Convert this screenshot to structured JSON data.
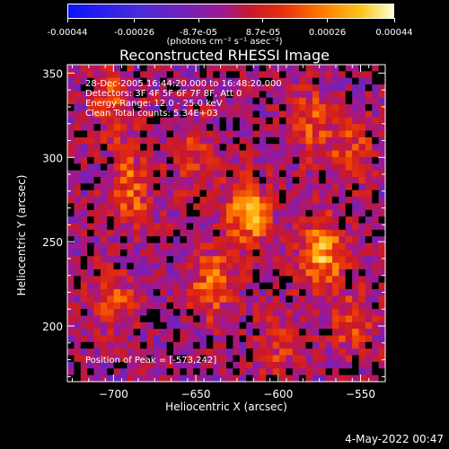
{
  "colorbar": {
    "tick_labels": [
      "-0.00044",
      "-0.00026",
      "-8.7e-05",
      "8.7e-05",
      "0.00026",
      "0.00044"
    ],
    "tick_values": [
      -0.00044,
      -0.00026,
      -8.7e-05,
      8.7e-05,
      0.00026,
      0.00044
    ],
    "unit_label": "(photons cm⁻² s⁻¹ asec⁻²)",
    "range": [
      -0.00044,
      0.00044
    ]
  },
  "title": "Reconstructed RHESSI Image",
  "annotations": {
    "time_range": "28-Dec-2005 16:44:20.000 to 16:48:20.000",
    "detectors": "Detectors: 3F 4F 5F 6F 7F 8F, Att 0",
    "energy": "Energy Range: 12.0 - 25.0 keV",
    "method": "Clean     Total counts: 5.34E+03",
    "peak": "Position of Peak = [-573,242]"
  },
  "timestamp": "4-May-2022 00:47",
  "chart_data": {
    "type": "heatmap",
    "title": "Reconstructed RHESSI Image",
    "xlabel": "Heliocentric X (arcsec)",
    "ylabel": "Heliocentric Y (arcsec)",
    "xlim": [
      -728,
      -535
    ],
    "ylim": [
      167,
      355
    ],
    "x_ticks": [
      -700,
      -650,
      -600,
      -550
    ],
    "x_tick_labels": [
      "−700",
      "−650",
      "−600",
      "−550"
    ],
    "y_ticks": [
      200,
      250,
      300,
      350
    ],
    "y_tick_labels": [
      "200",
      "250",
      "300",
      "350"
    ],
    "colorscale": [
      "#0a14ff",
      "#4b2bd8",
      "#7a1fb4",
      "#a01890",
      "#c8182a",
      "#e6300c",
      "#ff7a00",
      "#ffc31a",
      "#ffffd0"
    ],
    "peak": [
      -573,
      242
    ],
    "bright_regions": [
      {
        "x": -618,
        "y": 265,
        "intensity": 0.0004
      },
      {
        "x": -573,
        "y": 242,
        "intensity": 0.00044
      },
      {
        "x": -640,
        "y": 225,
        "intensity": 0.0003
      },
      {
        "x": -690,
        "y": 280,
        "intensity": 0.0003
      },
      {
        "x": -700,
        "y": 330,
        "intensity": 0.00025
      },
      {
        "x": -580,
        "y": 320,
        "intensity": 0.00025
      },
      {
        "x": -700,
        "y": 215,
        "intensity": 0.00022
      },
      {
        "x": -555,
        "y": 305,
        "intensity": 0.00022
      },
      {
        "x": -650,
        "y": 300,
        "intensity": 0.0002
      },
      {
        "x": -600,
        "y": 190,
        "intensity": 0.00018
      },
      {
        "x": -555,
        "y": 200,
        "intensity": 0.0002
      }
    ]
  }
}
